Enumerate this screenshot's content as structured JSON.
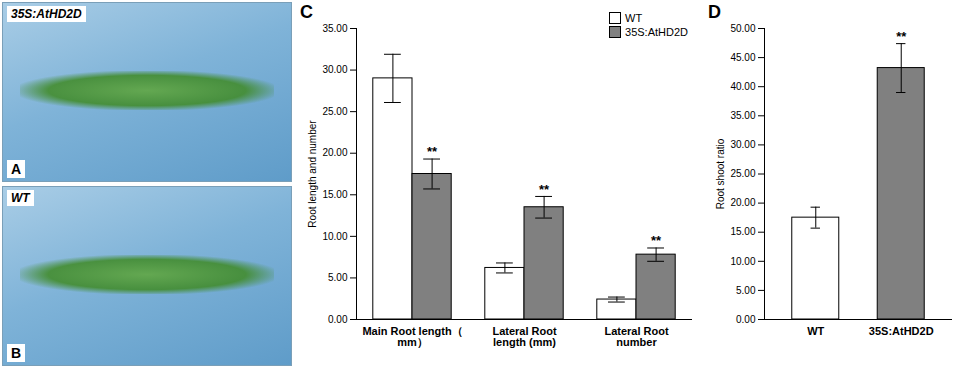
{
  "panels": [
    {
      "letter": "A",
      "label": "35S:AtHD2D"
    },
    {
      "letter": "B",
      "label": "WT"
    }
  ],
  "chart_data": [
    {
      "type": "bar",
      "panel_label": "C",
      "categories": [
        "Main Root length（ mm）",
        "Lateral Root length (mm)",
        "Lateral Root number"
      ],
      "series": [
        {
          "name": "WT",
          "color": "#ffffff",
          "values": [
            29.0,
            6.2,
            2.4
          ],
          "errors": [
            2.9,
            0.6,
            0.3
          ]
        },
        {
          "name": "35S:AtHD2D",
          "color": "#808080",
          "values": [
            17.5,
            13.5,
            7.8
          ],
          "errors": [
            1.8,
            1.3,
            0.8
          ],
          "significance": [
            "**",
            "**",
            "**"
          ]
        }
      ],
      "ylabel": "Root length and number",
      "ylim": [
        0,
        35
      ],
      "yticks": [
        {
          "value": 0,
          "label": "0.00"
        },
        {
          "value": 5,
          "label": "5.00"
        },
        {
          "value": 10,
          "label": "10.00"
        },
        {
          "value": 15,
          "label": "15.00"
        },
        {
          "value": 20,
          "label": "20.00"
        },
        {
          "value": 25,
          "label": "25.00"
        },
        {
          "value": 30,
          "label": "30.00"
        },
        {
          "value": 35,
          "label": "35.00"
        }
      ],
      "legend": "top-right"
    },
    {
      "type": "bar",
      "panel_label": "D",
      "categories": [
        "WT",
        "35S:AtHD2D"
      ],
      "values": [
        17.5,
        43.2
      ],
      "errors": [
        1.8,
        4.2
      ],
      "colors": [
        "#ffffff",
        "#808080"
      ],
      "significance": [
        null,
        "**"
      ],
      "ylabel": "Root shoot ratio",
      "ylim": [
        0,
        50
      ],
      "yticks": [
        {
          "value": 0,
          "label": "0.00"
        },
        {
          "value": 5,
          "label": "5.00"
        },
        {
          "value": 10,
          "label": "10.00"
        },
        {
          "value": 15,
          "label": "15.00"
        },
        {
          "value": 20,
          "label": "20.00"
        },
        {
          "value": 25,
          "label": "25.00"
        },
        {
          "value": 30,
          "label": "30.00"
        },
        {
          "value": 35,
          "label": "35.00"
        },
        {
          "value": 40,
          "label": "40.00"
        },
        {
          "value": 45,
          "label": "45.00"
        },
        {
          "value": 50,
          "label": "50.00"
        }
      ]
    }
  ]
}
